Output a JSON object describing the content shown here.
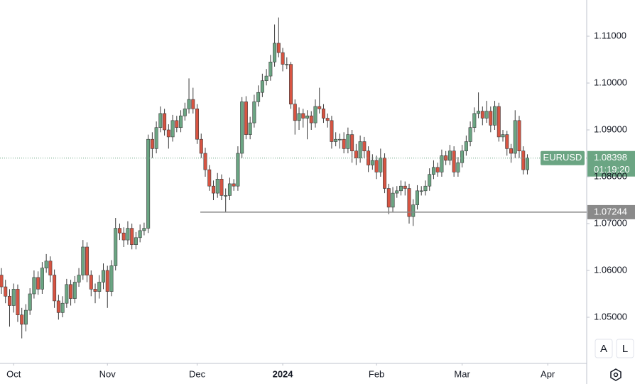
{
  "chart_data": {
    "type": "candlestick",
    "symbol": "EURUSD",
    "last_price": 1.08398,
    "countdown": "01:19:20",
    "level": 1.07244,
    "up_color": "#6ba583",
    "down_color": "#d75442",
    "wick_color": "#3a3a3a",
    "grid": false,
    "ylim": [
      1.04015,
      1.11773
    ],
    "yticks": [
      {
        "value": 1.05,
        "label": "1.05000"
      },
      {
        "value": 1.06,
        "label": "1.06000"
      },
      {
        "value": 1.07,
        "label": "1.07000"
      },
      {
        "value": 1.08,
        "label": "1.08000"
      },
      {
        "value": 1.09,
        "label": "1.09000"
      },
      {
        "value": 1.1,
        "label": "1.10000"
      },
      {
        "value": 1.11,
        "label": "1.11000"
      }
    ],
    "xlim": [
      0,
      146
    ],
    "xticks": [
      {
        "value": 3,
        "label": "Oct"
      },
      {
        "value": 26,
        "label": "Nov"
      },
      {
        "value": 48,
        "label": "Dec"
      },
      {
        "value": 69,
        "label": "2024"
      },
      {
        "value": 92,
        "label": "Feb"
      },
      {
        "value": 113,
        "label": "Mar"
      },
      {
        "value": 134,
        "label": "Apr"
      }
    ],
    "buttons": [
      "A",
      "L"
    ],
    "candles": [
      [
        1.059,
        1.0605,
        1.055,
        1.0565
      ],
      [
        1.0565,
        1.058,
        1.053,
        1.0545
      ],
      [
        1.0545,
        1.056,
        1.048,
        1.0525
      ],
      [
        1.0525,
        1.0572,
        1.051,
        1.056
      ],
      [
        1.056,
        1.057,
        1.049,
        1.0505
      ],
      [
        1.0505,
        1.052,
        1.0455,
        1.0485
      ],
      [
        1.0485,
        1.0528,
        1.047,
        1.0515
      ],
      [
        1.0515,
        1.0562,
        1.0505,
        1.055
      ],
      [
        1.055,
        1.06,
        1.054,
        1.0585
      ],
      [
        1.0585,
        1.0598,
        1.0548,
        1.056
      ],
      [
        1.056,
        1.0618,
        1.055,
        1.0605
      ],
      [
        1.0605,
        1.0635,
        1.0595,
        1.062
      ],
      [
        1.062,
        1.063,
        1.0575,
        1.059
      ],
      [
        1.059,
        1.0602,
        1.052,
        1.0535
      ],
      [
        1.0535,
        1.0548,
        1.0495,
        1.051
      ],
      [
        1.051,
        1.0545,
        1.05,
        1.053
      ],
      [
        1.053,
        1.0582,
        1.052,
        1.057
      ],
      [
        1.057,
        1.058,
        1.0525,
        1.054
      ],
      [
        1.054,
        1.0588,
        1.053,
        1.0575
      ],
      [
        1.0575,
        1.0605,
        1.0565,
        1.059
      ],
      [
        1.059,
        1.0665,
        1.058,
        1.065
      ],
      [
        1.065,
        1.066,
        1.0575,
        1.059
      ],
      [
        1.059,
        1.06,
        1.0545,
        1.056
      ],
      [
        1.056,
        1.0572,
        1.053,
        1.0555
      ],
      [
        1.0555,
        1.059,
        1.054,
        1.0575
      ],
      [
        1.0575,
        1.0615,
        1.056,
        1.06
      ],
      [
        1.06,
        1.061,
        1.052,
        1.0555
      ],
      [
        1.0555,
        1.0622,
        1.0545,
        1.061
      ],
      [
        1.061,
        1.0712,
        1.06,
        1.069
      ],
      [
        1.069,
        1.07,
        1.0665,
        1.068
      ],
      [
        1.068,
        1.0692,
        1.065,
        1.0665
      ],
      [
        1.0665,
        1.0705,
        1.0655,
        1.069
      ],
      [
        1.069,
        1.07,
        1.0645,
        1.0655
      ],
      [
        1.0655,
        1.0682,
        1.0645,
        1.067
      ],
      [
        1.067,
        1.0698,
        1.066,
        1.0685
      ],
      [
        1.0685,
        1.0702,
        1.0675,
        1.069
      ],
      [
        1.069,
        1.089,
        1.068,
        1.088
      ],
      [
        1.088,
        1.0895,
        1.084,
        1.086
      ],
      [
        1.086,
        1.0918,
        1.085,
        1.0905
      ],
      [
        1.0905,
        1.095,
        1.0895,
        1.0935
      ],
      [
        1.0935,
        1.0945,
        1.0888,
        1.09
      ],
      [
        1.09,
        1.0912,
        1.086,
        1.0885
      ],
      [
        1.0885,
        1.0932,
        1.0875,
        1.092
      ],
      [
        1.092,
        1.093,
        1.0895,
        1.0905
      ],
      [
        1.0905,
        1.0942,
        1.0895,
        1.093
      ],
      [
        1.093,
        1.0958,
        1.092,
        1.0945
      ],
      [
        1.0945,
        1.101,
        1.0935,
        1.0965
      ],
      [
        1.0965,
        1.099,
        1.0935,
        1.0945
      ],
      [
        1.0945,
        1.0955,
        1.087,
        1.088
      ],
      [
        1.088,
        1.0892,
        1.084,
        1.085
      ],
      [
        1.085,
        1.0862,
        1.08,
        1.0815
      ],
      [
        1.0815,
        1.0825,
        1.077,
        1.078
      ],
      [
        1.078,
        1.0792,
        1.075,
        1.0765
      ],
      [
        1.0765,
        1.0808,
        1.0755,
        1.0795
      ],
      [
        1.0795,
        1.0805,
        1.075,
        1.076
      ],
      [
        1.076,
        1.0775,
        1.0725,
        1.076
      ],
      [
        1.076,
        1.0798,
        1.075,
        1.0785
      ],
      [
        1.0785,
        1.0795,
        1.077,
        1.078
      ],
      [
        1.078,
        1.0865,
        1.077,
        1.085
      ],
      [
        1.085,
        1.097,
        1.084,
        1.096
      ],
      [
        1.096,
        1.0972,
        1.088,
        1.089
      ],
      [
        1.089,
        1.0928,
        1.088,
        1.0915
      ],
      [
        1.0915,
        1.0975,
        1.0905,
        1.096
      ],
      [
        1.096,
        1.0995,
        1.095,
        1.098
      ],
      [
        1.098,
        1.102,
        1.097,
        1.1005
      ],
      [
        1.1005,
        1.103,
        1.0995,
        1.1015
      ],
      [
        1.1015,
        1.106,
        1.1005,
        1.1045
      ],
      [
        1.1045,
        1.1125,
        1.1035,
        1.1085
      ],
      [
        1.1085,
        1.114,
        1.1055,
        1.1065
      ],
      [
        1.1065,
        1.1075,
        1.1025,
        1.104
      ],
      [
        1.104,
        1.1055,
        1.103,
        1.104
      ],
      [
        1.104,
        1.1045,
        1.0945,
        1.0955
      ],
      [
        1.0955,
        1.0965,
        1.089,
        1.092
      ],
      [
        1.092,
        1.0948,
        1.09,
        1.0935
      ],
      [
        1.0935,
        1.0945,
        1.0905,
        1.0925
      ],
      [
        1.0925,
        1.0942,
        1.088,
        1.093
      ],
      [
        1.093,
        1.094,
        1.09,
        1.0915
      ],
      [
        1.0915,
        1.0965,
        1.0905,
        1.095
      ],
      [
        1.095,
        1.099,
        1.0935,
        1.0945
      ],
      [
        1.0945,
        1.0955,
        1.0915,
        1.0925
      ],
      [
        1.0925,
        1.0935,
        1.0905,
        1.092
      ],
      [
        1.092,
        1.093,
        1.086,
        1.0875
      ],
      [
        1.0875,
        1.0895,
        1.0865,
        1.088
      ],
      [
        1.088,
        1.0892,
        1.086,
        1.088
      ],
      [
        1.088,
        1.0895,
        1.085,
        1.086
      ],
      [
        1.086,
        1.0905,
        1.085,
        1.089
      ],
      [
        1.089,
        1.09,
        1.083,
        1.0855
      ],
      [
        1.0855,
        1.087,
        1.0825,
        1.084
      ],
      [
        1.084,
        1.0888,
        1.083,
        1.0875
      ],
      [
        1.0875,
        1.0885,
        1.084,
        1.0855
      ],
      [
        1.0855,
        1.0865,
        1.081,
        1.0825
      ],
      [
        1.0825,
        1.0848,
        1.0815,
        1.0835
      ],
      [
        1.0835,
        1.0845,
        1.0795,
        1.081
      ],
      [
        1.081,
        1.086,
        1.08,
        1.084
      ],
      [
        1.084,
        1.085,
        1.0765,
        1.0775
      ],
      [
        1.0775,
        1.0785,
        1.072,
        1.0735
      ],
      [
        1.0735,
        1.0778,
        1.0725,
        1.0765
      ],
      [
        1.0765,
        1.078,
        1.0755,
        1.077
      ],
      [
        1.077,
        1.0792,
        1.076,
        1.078
      ],
      [
        1.078,
        1.079,
        1.076,
        1.0775
      ],
      [
        1.0775,
        1.0785,
        1.07,
        1.0715
      ],
      [
        1.0715,
        1.0752,
        1.0695,
        1.074
      ],
      [
        1.074,
        1.0782,
        1.073,
        1.077
      ],
      [
        1.077,
        1.078,
        1.076,
        1.077
      ],
      [
        1.077,
        1.0792,
        1.076,
        1.078
      ],
      [
        1.078,
        1.0818,
        1.077,
        1.0805
      ],
      [
        1.0805,
        1.0835,
        1.0795,
        1.082
      ],
      [
        1.082,
        1.083,
        1.08,
        1.081
      ],
      [
        1.081,
        1.0858,
        1.08,
        1.0845
      ],
      [
        1.0845,
        1.0855,
        1.0825,
        1.0835
      ],
      [
        1.0835,
        1.0868,
        1.0825,
        1.0855
      ],
      [
        1.0855,
        1.0865,
        1.08,
        1.081
      ],
      [
        1.081,
        1.0842,
        1.08,
        1.083
      ],
      [
        1.083,
        1.0868,
        1.082,
        1.0855
      ],
      [
        1.0855,
        1.0888,
        1.0845,
        1.0875
      ],
      [
        1.0875,
        1.0918,
        1.0865,
        1.0905
      ],
      [
        1.0905,
        1.0948,
        1.0895,
        1.0935
      ],
      [
        1.0935,
        1.098,
        1.0925,
        1.094
      ],
      [
        1.094,
        1.095,
        1.091,
        1.0925
      ],
      [
        1.0925,
        1.0962,
        1.0915,
        1.094
      ],
      [
        1.094,
        1.095,
        1.0895,
        1.091
      ],
      [
        1.091,
        1.0962,
        1.09,
        1.095
      ],
      [
        1.095,
        1.0958,
        1.0875,
        1.0885
      ],
      [
        1.0885,
        1.09,
        1.0875,
        1.089
      ],
      [
        1.089,
        1.0898,
        1.0845,
        1.086
      ],
      [
        1.086,
        1.087,
        1.083,
        1.085
      ],
      [
        1.085,
        1.0942,
        1.084,
        1.092
      ],
      [
        1.092,
        1.093,
        1.084,
        1.0855
      ],
      [
        1.0855,
        1.0865,
        1.0805,
        1.0815
      ],
      [
        1.0815,
        1.0848,
        1.0805,
        1.084
      ]
    ]
  }
}
